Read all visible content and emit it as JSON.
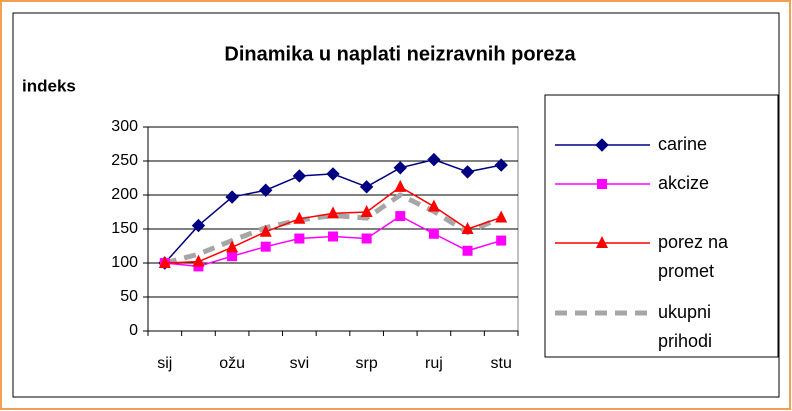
{
  "chart_data": {
    "type": "line",
    "title": "Dinamika u naplati neizravnih poreza",
    "y_label": "indeks",
    "categories": [
      "sij",
      null,
      "ožu",
      null,
      "svi",
      null,
      "srp",
      null,
      "ruj",
      null,
      "stu"
    ],
    "series": [
      {
        "name": "carine",
        "color": "#000080",
        "marker": "diamond",
        "line_style": "solid",
        "values": [
          100,
          155,
          197,
          207,
          228,
          231,
          212,
          240,
          252,
          234,
          244
        ]
      },
      {
        "name": "akcize",
        "color": "#ff00ff",
        "marker": "square",
        "line_style": "solid",
        "values": [
          100,
          95,
          110,
          124,
          136,
          139,
          136,
          169,
          143,
          118,
          133
        ]
      },
      {
        "name": "porez na promet",
        "color": "#ff0000",
        "marker": "triangle",
        "line_style": "solid",
        "values": [
          100,
          102,
          123,
          146,
          165,
          173,
          175,
          212,
          183,
          150,
          167
        ]
      },
      {
        "name": "ukupni prihodi",
        "color": "#a6a6a6",
        "marker": "none",
        "line_style": "dashed",
        "values": [
          100,
          113,
          133,
          152,
          163,
          170,
          166,
          200,
          176,
          145,
          167
        ]
      }
    ],
    "ylim": [
      0,
      300
    ],
    "yticks": [
      0,
      50,
      100,
      150,
      200,
      250,
      300
    ],
    "grid": true,
    "legend": "right"
  }
}
